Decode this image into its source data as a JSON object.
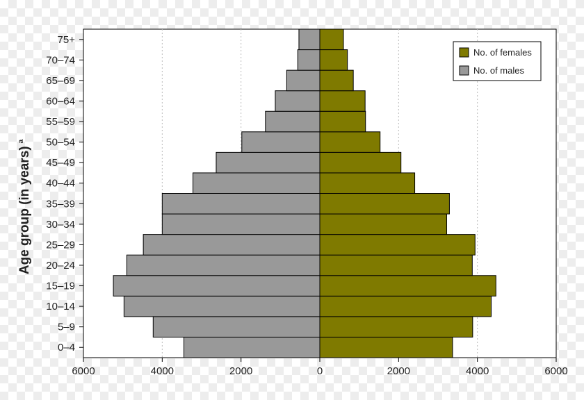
{
  "chart_data": {
    "type": "bar",
    "orientation": "horizontal",
    "categories": [
      "0–4",
      "5–9",
      "10–14",
      "15–19",
      "20–24",
      "25–29",
      "30–34",
      "35–39",
      "40–44",
      "45–49",
      "50–54",
      "55–59",
      "60–64",
      "65–69",
      "70–74",
      "75+"
    ],
    "series": [
      {
        "name": "No. of males",
        "color": "#999999",
        "side": "left",
        "values": [
          3450,
          4230,
          4970,
          5240,
          4900,
          4480,
          4000,
          4000,
          3220,
          2630,
          1980,
          1380,
          1130,
          840,
          560,
          530
        ]
      },
      {
        "name": "No. of females",
        "color": "#7f7a00",
        "side": "right",
        "values": [
          3370,
          3880,
          4350,
          4470,
          3870,
          3940,
          3220,
          3290,
          2410,
          2060,
          1530,
          1160,
          1150,
          850,
          700,
          600
        ]
      }
    ],
    "xlim": [
      -6000,
      6000
    ],
    "xticks": [
      -6000,
      -4000,
      -2000,
      0,
      2000,
      4000,
      6000
    ],
    "xtick_labels": [
      "6000",
      "4000",
      "2000",
      "0",
      "2000",
      "4000",
      "6000"
    ],
    "ylabel": "Age group (in years)",
    "ylabel_superscript": "a",
    "xlabel": "",
    "title": "",
    "grid": "vertical-dotted",
    "legend_position": "top-right",
    "legend_order": [
      "No. of females",
      "No. of males"
    ],
    "bar_edge_color": "#000000"
  }
}
